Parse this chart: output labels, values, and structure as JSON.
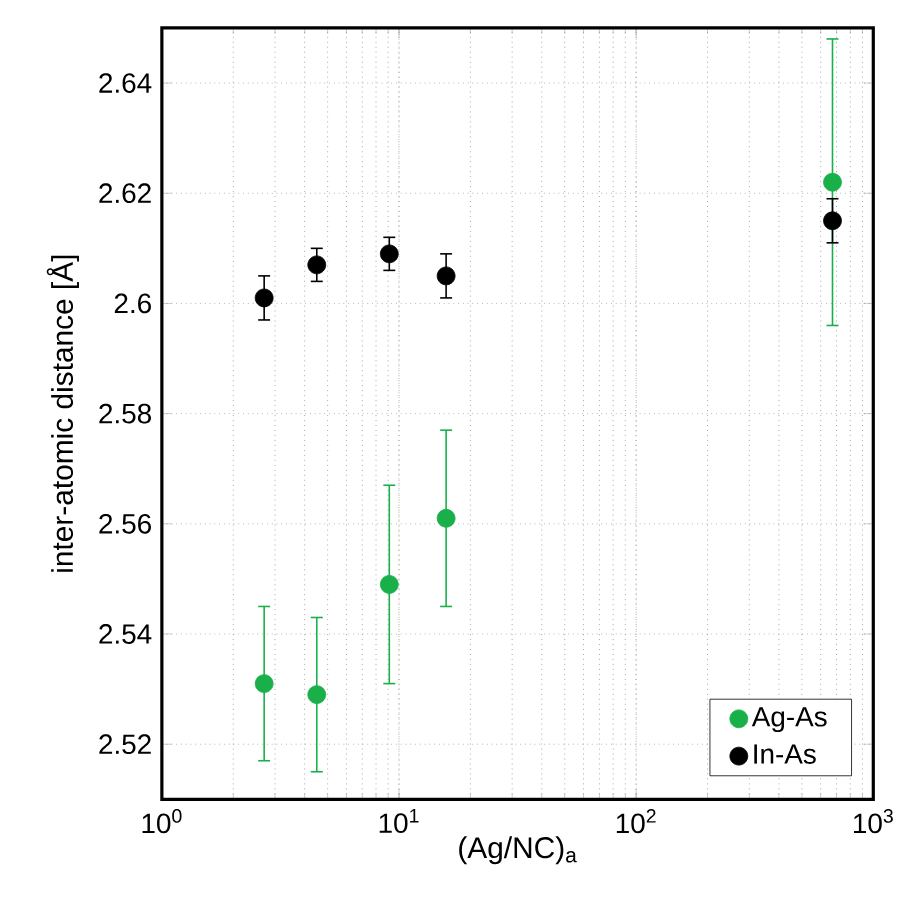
{
  "chart_data": {
    "type": "scatter",
    "xlabel": "(Ag/NC)$_{a}$",
    "ylabel": "inter-atomic distance [Å]",
    "log": "x",
    "grid": true,
    "legend": "bottom right",
    "marker": "circle",
    "xlim": [
      1,
      1000
    ],
    "xticks": [
      {
        "value": 1,
        "label": "10$^{0}$"
      },
      {
        "value": 10,
        "label": "10$^{1}$"
      },
      {
        "value": 100,
        "label": "10$^{2}$"
      },
      {
        "value": 1000,
        "label": "10$^{3}$"
      }
    ],
    "ylim": [
      2.51,
      2.65
    ],
    "yticks": [
      2.52,
      2.54,
      2.56,
      2.58,
      2.6,
      2.62,
      2.64
    ],
    "x": [
      2.7,
      4.5,
      9.1,
      15.8,
      673
    ],
    "series": [
      {
        "name": "Ag-As",
        "color": "#19b04a",
        "values": [
          2.531,
          2.529,
          2.549,
          2.561,
          2.622
        ],
        "errors": [
          [
            2.517,
            2.545
          ],
          [
            2.515,
            2.543
          ],
          [
            2.531,
            2.567
          ],
          [
            2.545,
            2.577
          ],
          [
            2.596,
            2.648
          ]
        ]
      },
      {
        "name": "In-As",
        "color": "#000000",
        "values": [
          2.601,
          2.607,
          2.609,
          2.605,
          2.615
        ],
        "errors": [
          [
            2.597,
            2.605
          ],
          [
            2.604,
            2.61
          ],
          [
            2.606,
            2.612
          ],
          [
            2.601,
            2.609
          ],
          [
            2.611,
            2.619
          ]
        ]
      }
    ]
  }
}
